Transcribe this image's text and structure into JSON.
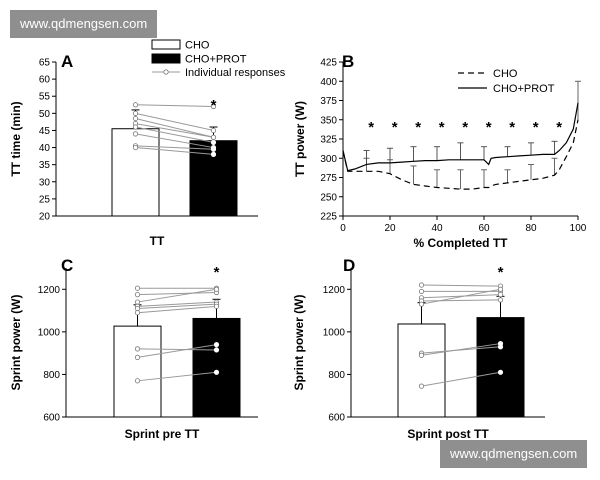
{
  "watermark": {
    "top": "www.qdmengsen.com",
    "bottom": "www.qdmengsen.com"
  },
  "colors": {
    "cho": "#ffffff",
    "cho_prot": "#000000",
    "individual": "#999999"
  },
  "chart_data": [
    {
      "panel": "A",
      "type": "bar",
      "xlabel": "TT",
      "ylabel": "TT time (min)",
      "ylim": [
        20,
        65
      ],
      "yticks": [
        20,
        25,
        30,
        35,
        40,
        45,
        50,
        55,
        60,
        65
      ],
      "legend": {
        "placement": "top-right",
        "entries": [
          "CHO",
          "CHO+PROT",
          "Individual responses"
        ]
      },
      "series": [
        {
          "name": "CHO",
          "mean": 45.5,
          "sd": 5.5
        },
        {
          "name": "CHO+PROT",
          "mean": 42.0,
          "sd": 4.0
        }
      ],
      "individual_responses": [
        [
          52.5,
          52.0
        ],
        [
          50.0,
          45.0
        ],
        [
          48.5,
          43.0
        ],
        [
          47.0,
          43.0
        ],
        [
          46.0,
          41.5
        ],
        [
          44.0,
          40.0
        ],
        [
          40.5,
          39.5
        ],
        [
          40.0,
          38.0
        ]
      ],
      "significance": "*",
      "grid": false
    },
    {
      "panel": "B",
      "type": "line",
      "xlabel": "% Completed TT",
      "ylabel": "TT power (W)",
      "xlim": [
        0,
        100
      ],
      "ylim": [
        225,
        425
      ],
      "xticks": [
        0,
        20,
        40,
        60,
        80,
        100
      ],
      "yticks": [
        225,
        250,
        275,
        300,
        325,
        350,
        375,
        400,
        425
      ],
      "legend": {
        "placement": "top-right",
        "entries": [
          "CHO",
          "CHO+PROT"
        ]
      },
      "x": [
        0,
        2,
        5,
        10,
        15,
        20,
        25,
        30,
        35,
        40,
        45,
        50,
        55,
        60,
        62,
        63,
        65,
        70,
        75,
        80,
        85,
        90,
        92,
        95,
        98,
        100
      ],
      "series": [
        {
          "name": "CHO",
          "values": [
            310,
            283,
            283,
            283,
            283,
            280,
            272,
            266,
            264,
            262,
            261,
            260,
            260,
            262,
            262,
            264,
            266,
            268,
            270,
            272,
            274,
            278,
            285,
            302,
            320,
            350
          ],
          "error_x": [
            10,
            20,
            30,
            40,
            50,
            60,
            70,
            80,
            90,
            100
          ],
          "error_up": [
            300,
            298,
            290,
            285,
            285,
            285,
            285,
            292,
            300,
            400
          ]
        },
        {
          "name": "CHO+PROT",
          "values": [
            310,
            284,
            286,
            292,
            294,
            294,
            295,
            296,
            297,
            297,
            298,
            298,
            298,
            298,
            292,
            300,
            301,
            302,
            303,
            304,
            305,
            305,
            310,
            320,
            338,
            372
          ],
          "error_x": [
            10,
            20,
            30,
            40,
            50,
            60,
            70,
            80,
            90
          ],
          "error_up": [
            310,
            313,
            315,
            315,
            320,
            315,
            315,
            320,
            322
          ]
        }
      ],
      "significance_x": [
        12,
        22,
        32,
        42,
        52,
        62,
        72,
        82,
        92
      ],
      "significance": "*",
      "grid": false
    },
    {
      "panel": "C",
      "type": "bar",
      "xlabel": "Sprint pre TT",
      "ylabel": "Sprint power (W)",
      "ylim": [
        600,
        1300
      ],
      "yticks": [
        600,
        800,
        1000,
        1200
      ],
      "series": [
        {
          "name": "CHO",
          "mean": 1027,
          "sd": 100
        },
        {
          "name": "CHO+PROT",
          "mean": 1063,
          "sd": 90
        }
      ],
      "individual_responses": [
        [
          1205,
          1205
        ],
        [
          1175,
          1185
        ],
        [
          1140,
          1200
        ],
        [
          1120,
          1140
        ],
        [
          1110,
          1130
        ],
        [
          1090,
          1120
        ],
        [
          920,
          915
        ],
        [
          880,
          940
        ],
        [
          770,
          810
        ]
      ],
      "significance": "*",
      "grid": false
    },
    {
      "panel": "D",
      "type": "bar",
      "xlabel": "Sprint post TT",
      "ylabel": "Sprint power (W)",
      "ylim": [
        600,
        1300
      ],
      "yticks": [
        600,
        800,
        1000,
        1200
      ],
      "series": [
        {
          "name": "CHO",
          "mean": 1037,
          "sd": 100
        },
        {
          "name": "CHO+PROT",
          "mean": 1067,
          "sd": 100
        }
      ],
      "individual_responses": [
        [
          1220,
          1215
        ],
        [
          1190,
          1190
        ],
        [
          1160,
          1175
        ],
        [
          1145,
          1150
        ],
        [
          1130,
          1200
        ],
        [
          900,
          930
        ],
        [
          890,
          945
        ],
        [
          745,
          810
        ]
      ],
      "significance": "*",
      "grid": false
    }
  ]
}
